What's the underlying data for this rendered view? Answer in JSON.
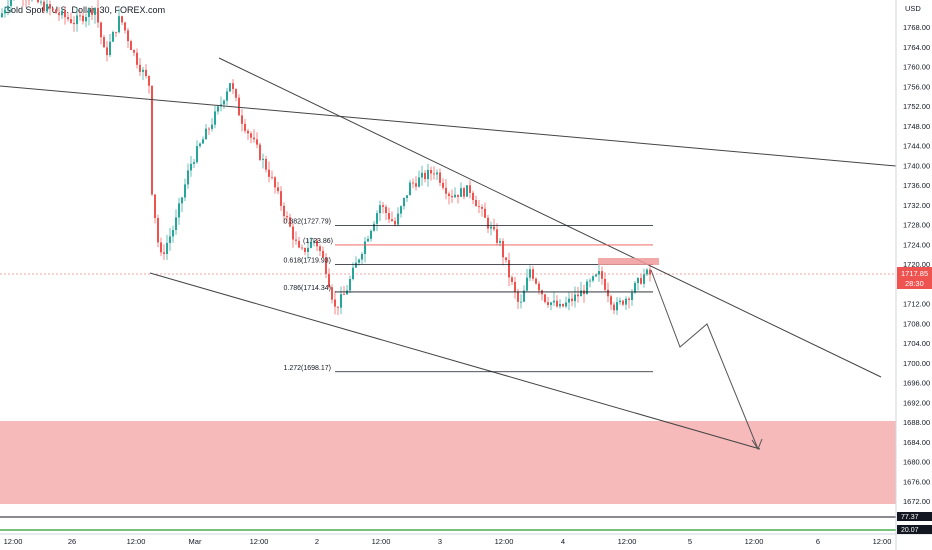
{
  "title": "Gold Spot / U.S. Dollar, 30, FOREX.com",
  "currency": "USD",
  "chart_data": {
    "type": "candlestick",
    "y_ticks": [
      1768,
      1764,
      1760,
      1756,
      1752,
      1748,
      1744,
      1740,
      1736,
      1732,
      1728,
      1724,
      1720,
      1716,
      1712,
      1708,
      1704,
      1700,
      1696,
      1692,
      1688,
      1684,
      1680,
      1676,
      1672
    ],
    "ylim": [
      1670,
      1772
    ],
    "x_ticks": [
      "12:00",
      "26",
      "12:00",
      "Mar",
      "12:00",
      "2",
      "12:00",
      "3",
      "12:00",
      "4",
      "12:00",
      "5",
      "12:00",
      "6",
      "12:00"
    ],
    "current_price": "1717.85",
    "countdown": "28:30",
    "bottom_labels": [
      "77.37",
      "20.07"
    ],
    "colors": {
      "up": "#26a69a",
      "down": "#ef5350",
      "zone": "#f7b6b6",
      "line": "#444444",
      "fib": "#131722",
      "price_line": "#f7a5a5",
      "green_line": "#4caf50"
    },
    "fibonacci": [
      {
        "label": "0.382(1727.79)",
        "value": 1727.79
      },
      {
        "label": "(1723.86)",
        "value": 1723.86
      },
      {
        "label": "0.618(1719.93)",
        "value": 1719.93
      },
      {
        "label": "0.786(1714.34)",
        "value": 1714.34
      },
      {
        "label": "1.272(1698.17)",
        "value": 1698.17
      }
    ],
    "demand_zone": {
      "from": 1672,
      "to": 1688
    },
    "candles_summary": "Decline from ~1775 to ~1717 with rebound to ~1760 on Mar 1, then falling wedge into 1717.85 close",
    "forecast_path": [
      1717.5,
      1702,
      1708,
      1684
    ]
  }
}
